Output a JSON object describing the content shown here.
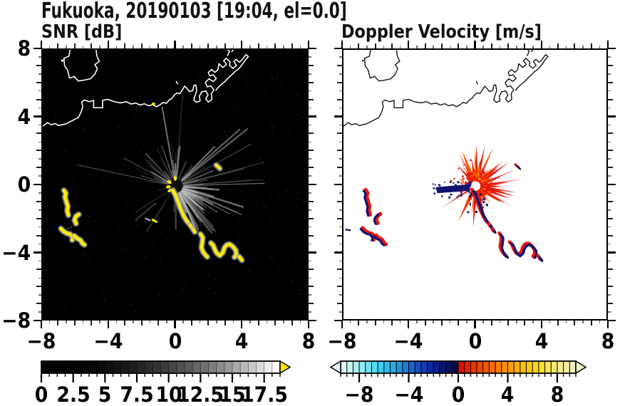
{
  "title": "Fukuoka, 20190103 [19:04, el=0.0]",
  "panels": {
    "snr": {
      "title": "SNR [dB]"
    },
    "velocity": {
      "title": "Doppler Velocity [m/s]"
    }
  },
  "axes": {
    "xlim": [
      -8,
      8
    ],
    "ylim": [
      -8,
      8
    ],
    "minor_step": 0.5,
    "xtick_values": [
      -8,
      -4,
      0,
      4,
      8
    ],
    "xtick_labels": [
      "−8",
      "−4",
      "0",
      "4",
      "8"
    ],
    "ytick_values": [
      8,
      4,
      0,
      -4,
      -8
    ],
    "ytick_labels": [
      "8",
      "4",
      "0",
      "−4",
      "−8"
    ]
  },
  "colorbars": {
    "snr": {
      "range": [
        0,
        18.75
      ],
      "n_cells": 30,
      "gamma": 2.2,
      "start_color": "#000000",
      "end_color": "#ffffff",
      "overflow_color": "#ffe600",
      "tick_values": [
        0,
        2.5,
        5,
        7.5,
        10,
        12.5,
        15,
        17.5
      ],
      "tick_labels": [
        "0",
        "2.5",
        "5",
        "7.5",
        "10",
        "12.5",
        "15",
        "17.5"
      ]
    },
    "velocity": {
      "range": [
        -9.5,
        9.5
      ],
      "n_cells": 38,
      "cold_anchors": [
        "#dcf9f6",
        "#b4f2ee",
        "#86eaf2",
        "#55dcf2",
        "#30c6ee",
        "#28a6e2",
        "#2180d6",
        "#1a58c8",
        "#1238b2",
        "#0c1f96",
        "#061270",
        "#03094a"
      ],
      "warm_anchors": [
        "#e01000",
        "#ea3302",
        "#f35204",
        "#f97305",
        "#fe9306",
        "#ffae08",
        "#fec90a",
        "#fbdc20",
        "#f8e85c",
        "#f4ec94",
        "#f0ecbe"
      ],
      "underflow_color": "#dcf9f6",
      "overflow_color": "#f0ecbe",
      "tick_values": [
        -8,
        -4,
        0,
        4,
        8
      ],
      "tick_labels": [
        "−8",
        "−4",
        "0",
        "4",
        "8"
      ]
    }
  },
  "chart_data": {
    "type": "heatmap",
    "subtype": "radar-ppi-pair",
    "site_label": "Fukuoka, 20190103 [19:04, el=0.0]",
    "x_range": [
      -8,
      8
    ],
    "y_range": [
      -8,
      8
    ],
    "radar_center": [
      0.05,
      -0.08
    ],
    "coastline": {
      "stroke_snr": "#ffffff",
      "stroke_vel": "#141414",
      "island_dot": [
        -6.82,
        7.36
      ],
      "coast_echo_dot": [
        -1.3,
        4.78
      ],
      "polylines": [
        [
          [
            -6.34,
            8.05
          ],
          [
            -6.42,
            7.62
          ],
          [
            -6.72,
            7.5
          ],
          [
            -6.68,
            7.05
          ],
          [
            -6.5,
            6.8
          ],
          [
            -6.38,
            6.32
          ],
          [
            -6.1,
            6.42
          ],
          [
            -5.85,
            6.15
          ],
          [
            -5.5,
            6.2
          ],
          [
            -5.12,
            6.28
          ],
          [
            -4.85,
            6.55
          ],
          [
            -4.7,
            6.9
          ],
          [
            -4.85,
            7.12
          ],
          [
            -4.58,
            7.32
          ],
          [
            -4.72,
            7.62
          ],
          [
            -4.78,
            8.05
          ]
        ],
        [
          [
            -8.05,
            3.42
          ],
          [
            -7.72,
            3.68
          ],
          [
            -7.5,
            3.55
          ],
          [
            -7.25,
            3.62
          ],
          [
            -7.05,
            3.5
          ],
          [
            -6.6,
            3.6
          ],
          [
            -6.2,
            3.8
          ],
          [
            -5.85,
            3.98
          ],
          [
            -5.68,
            4.3
          ],
          [
            -5.58,
            4.62
          ],
          [
            -5.64,
            4.9
          ],
          [
            -5.48,
            5.02
          ],
          [
            -5.18,
            4.92
          ],
          [
            -4.92,
            5.0
          ],
          [
            -4.92,
            4.56
          ],
          [
            -4.38,
            4.56
          ],
          [
            -4.38,
            5.0
          ],
          [
            -4.05,
            5.06
          ],
          [
            -3.68,
            4.92
          ],
          [
            -3.3,
            4.85
          ],
          [
            -2.95,
            4.92
          ],
          [
            -2.65,
            4.78
          ],
          [
            -2.38,
            4.84
          ],
          [
            -2.1,
            4.72
          ],
          [
            -1.85,
            4.8
          ],
          [
            -1.6,
            4.68
          ],
          [
            -1.35,
            4.74
          ],
          [
            -1.12,
            4.62
          ],
          [
            -0.9,
            4.74
          ],
          [
            -0.72,
            4.88
          ],
          [
            -0.52,
            4.82
          ],
          [
            -0.35,
            5.02
          ],
          [
            -0.18,
            5.12
          ],
          [
            -0.05,
            5.3
          ],
          [
            0.12,
            5.44
          ],
          [
            0.3,
            5.4
          ],
          [
            0.45,
            5.62
          ],
          [
            0.58,
            5.84
          ],
          [
            0.72,
            5.72
          ],
          [
            0.88,
            5.52
          ],
          [
            1.08,
            5.58
          ],
          [
            1.14,
            5.88
          ],
          [
            1.26,
            5.92
          ],
          [
            1.32,
            5.58
          ],
          [
            1.22,
            5.3
          ],
          [
            1.14,
            5.02
          ],
          [
            1.3,
            4.88
          ],
          [
            1.52,
            4.96
          ],
          [
            1.48,
            5.26
          ],
          [
            1.62,
            5.5
          ],
          [
            1.88,
            5.56
          ],
          [
            2.0,
            5.32
          ],
          [
            1.86,
            5.08
          ],
          [
            2.02,
            4.9
          ],
          [
            2.24,
            5.06
          ],
          [
            2.2,
            5.4
          ],
          [
            2.36,
            5.62
          ],
          [
            2.16,
            5.86
          ],
          [
            1.96,
            5.8
          ],
          [
            1.84,
            6.06
          ],
          [
            2.06,
            6.28
          ],
          [
            2.32,
            6.12
          ],
          [
            2.5,
            6.3
          ],
          [
            2.32,
            6.52
          ],
          [
            2.1,
            6.46
          ],
          [
            2.02,
            6.66
          ],
          [
            2.22,
            6.84
          ],
          [
            2.42,
            6.66
          ],
          [
            2.6,
            6.82
          ],
          [
            2.66,
            7.18
          ],
          [
            2.9,
            6.95
          ],
          [
            3.12,
            7.14
          ],
          [
            2.95,
            7.35
          ],
          [
            3.1,
            7.5
          ],
          [
            3.34,
            7.28
          ],
          [
            3.3,
            7.08
          ],
          [
            3.52,
            6.9
          ],
          [
            3.72,
            7.08
          ],
          [
            3.56,
            7.3
          ],
          [
            3.7,
            7.44
          ],
          [
            3.9,
            7.26
          ],
          [
            4.05,
            7.4
          ],
          [
            4.3,
            7.72
          ],
          [
            4.44,
            7.6
          ],
          [
            4.28,
            7.42
          ],
          [
            4.06,
            7.12
          ],
          [
            3.88,
            6.9
          ],
          [
            3.6,
            6.68
          ],
          [
            3.42,
            6.5
          ],
          [
            3.2,
            6.3
          ],
          [
            3.0,
            6.1
          ],
          [
            2.78,
            5.92
          ],
          [
            2.6,
            5.76
          ],
          [
            2.48,
            5.6
          ]
        ],
        [
          [
            3.18,
            7.66
          ],
          [
            3.3,
            7.92
          ],
          [
            3.16,
            8.05
          ]
        ],
        [
          [
            3.44,
            7.9
          ],
          [
            3.56,
            8.05
          ]
        ],
        [
          [
            0.08,
            6.12
          ],
          [
            0.16,
            5.98
          ]
        ]
      ]
    },
    "snr_panel": {
      "background": "#000000",
      "seed": 11,
      "noise_dots": 1600,
      "ray_count": 95,
      "ray_color": "#cfcfcf",
      "max_ray_len_units": 5.2,
      "long_rays": [
        [
          168,
          5.6
        ],
        [
          152,
          3.1
        ],
        [
          299,
          2.4
        ]
      ],
      "blocked_wedges": [
        [
          196,
          212,
          2.0
        ],
        [
          218,
          231,
          1.6
        ],
        [
          238,
          248,
          1.3
        ]
      ],
      "center_disk_r": 0.42,
      "center_disk_color": "#0d0d0d",
      "echo_color": "#ffec00",
      "halo_color": "#b4b4b4"
    },
    "velocity_panel": {
      "background": "#ffffff",
      "seed": 23,
      "away_colors": [
        "#e8170c",
        "#f03a06",
        "#fa5e04",
        "#fe7d03"
      ],
      "toward_color": "#131470",
      "spike_count": 150,
      "max_spike_len_units": 2.3,
      "long_spikes": [
        [
          8,
          2.6
        ],
        [
          22,
          2.45
        ],
        [
          -30,
          2.15
        ]
      ],
      "toward_wedge": [
        [
          -0.18,
          0.02
        ],
        [
          -2.38,
          -0.16
        ],
        [
          -2.3,
          -0.52
        ],
        [
          -0.4,
          -0.38
        ]
      ],
      "center_hole_r": 0.27
    },
    "echo_features": {
      "left_arcs": [
        [
          [
            -6.72,
            -0.35
          ],
          [
            -6.6,
            -0.52
          ],
          [
            -6.66,
            -0.75
          ],
          [
            -6.58,
            -1.0
          ],
          [
            -6.48,
            -1.3
          ],
          [
            -6.52,
            -1.55
          ],
          [
            -6.45,
            -1.82
          ]
        ],
        [
          [
            -5.82,
            -1.78
          ],
          [
            -6.0,
            -1.9
          ],
          [
            -6.08,
            -2.12
          ],
          [
            -5.98,
            -2.32
          ]
        ],
        [
          [
            -6.9,
            -2.62
          ],
          [
            -6.75,
            -2.78
          ],
          [
            -6.55,
            -2.9
          ],
          [
            -6.35,
            -2.95
          ],
          [
            -6.18,
            -3.12
          ],
          [
            -6.22,
            -3.3
          ]
        ],
        [
          [
            -6.08,
            -3.05
          ],
          [
            -5.92,
            -3.2
          ],
          [
            -5.72,
            -3.3
          ],
          [
            -5.6,
            -3.5
          ],
          [
            -5.48,
            -3.58
          ]
        ]
      ],
      "faint_link": [
        [
          -6.05,
          -2.4
        ],
        [
          -6.45,
          -2.62
        ],
        [
          -6.8,
          -2.72
        ]
      ],
      "chain": [
        [
          [
            -0.12,
            -0.35
          ],
          [
            0.02,
            -0.6
          ],
          [
            0.12,
            -0.85
          ],
          [
            0.22,
            -1.1
          ],
          [
            0.3,
            -1.35
          ],
          [
            0.42,
            -1.62
          ],
          [
            0.55,
            -1.9
          ],
          [
            0.68,
            -2.12
          ],
          [
            0.82,
            -2.3
          ]
        ],
        [
          [
            0.92,
            -2.42
          ],
          [
            1.05,
            -2.58
          ]
        ],
        [
          [
            1.12,
            -2.7
          ],
          [
            1.2,
            -2.82
          ]
        ],
        [
          [
            1.55,
            -2.95
          ],
          [
            1.68,
            -3.15
          ],
          [
            1.65,
            -3.45
          ],
          [
            1.6,
            -3.75
          ],
          [
            1.7,
            -4.0
          ],
          [
            1.85,
            -4.2
          ],
          [
            1.95,
            -4.3
          ]
        ],
        [
          [
            2.18,
            -3.48
          ],
          [
            2.32,
            -3.62
          ],
          [
            2.42,
            -3.88
          ],
          [
            2.55,
            -4.1
          ],
          [
            2.72,
            -4.22
          ],
          [
            2.9,
            -4.05
          ],
          [
            2.98,
            -3.78
          ],
          [
            3.12,
            -3.6
          ],
          [
            3.3,
            -3.55
          ],
          [
            3.5,
            -3.68
          ],
          [
            3.68,
            -3.9
          ],
          [
            3.72,
            -4.15
          ],
          [
            3.6,
            -4.32
          ]
        ],
        [
          [
            3.9,
            -4.3
          ],
          [
            4.05,
            -4.5
          ]
        ]
      ],
      "ne_dash": [
        [
          2.5,
          1.15
        ],
        [
          2.72,
          0.95
        ]
      ],
      "west_dash": [
        [
          -7.85,
          -2.68
        ],
        [
          -7.6,
          -2.72
        ]
      ],
      "gray_dash": [
        [
          -1.78,
          -2.02
        ],
        [
          -1.5,
          -2.14
        ]
      ],
      "yellow_dash": [
        [
          -1.35,
          -2.1
        ],
        [
          -1.12,
          -2.22
        ]
      ]
    }
  }
}
